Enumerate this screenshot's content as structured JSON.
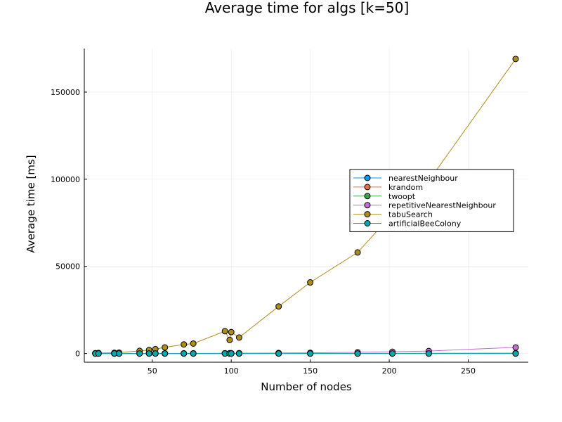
{
  "chart_data": {
    "type": "line",
    "title": "Average time for algs [k=50]",
    "xlabel": "Number of nodes",
    "ylabel": "Average time [ms]",
    "xlim": [
      7,
      288
    ],
    "ylim": [
      -5000,
      175000
    ],
    "xticks": [
      50,
      100,
      150,
      200,
      250
    ],
    "yticks": [
      0,
      50000,
      100000,
      150000
    ],
    "grid": true,
    "legend_position": "right-center",
    "x": [
      14,
      16,
      26,
      29,
      42,
      48,
      52,
      58,
      70,
      76,
      96,
      99,
      100,
      105,
      130,
      150,
      180,
      202,
      225,
      280
    ],
    "series": [
      {
        "name": "nearestNeighbour",
        "color": "#009af9",
        "values": [
          0,
          0,
          0,
          0,
          0,
          0,
          0,
          0,
          0,
          0,
          0,
          0,
          0,
          0,
          0,
          0,
          0,
          0,
          0,
          0
        ]
      },
      {
        "name": "krandom",
        "color": "#e26f46",
        "values": [
          0,
          0,
          0,
          0,
          1,
          1,
          1,
          1,
          1,
          1,
          2,
          2,
          2,
          2,
          2,
          3,
          4,
          5,
          6,
          10
        ]
      },
      {
        "name": "twoopt",
        "color": "#3da44d",
        "values": [
          0,
          0,
          0,
          0,
          2,
          3,
          3,
          4,
          6,
          7,
          12,
          13,
          13,
          15,
          25,
          35,
          60,
          80,
          110,
          200
        ]
      },
      {
        "name": "repetitiveNearestNeighbour",
        "color": "#c271d2",
        "values": [
          0,
          0,
          0,
          0,
          20,
          30,
          40,
          50,
          80,
          100,
          150,
          170,
          180,
          200,
          300,
          400,
          700,
          1000,
          1400,
          3500
        ]
      },
      {
        "name": "tabuSearch",
        "color": "#ac8d18",
        "values": [
          200,
          300,
          400,
          500,
          1500,
          2000,
          2500,
          3500,
          5200,
          5700,
          12800,
          7800,
          12300,
          9200,
          27000,
          40800,
          58000,
          80000,
          99000,
          169000
        ]
      },
      {
        "name": "artificialBeeColony",
        "color": "#00a9ad",
        "values": [
          0,
          0,
          0,
          0,
          0,
          0,
          0,
          0,
          0,
          0,
          0,
          0,
          0,
          0,
          0,
          0,
          0,
          0,
          0,
          0
        ]
      }
    ]
  }
}
